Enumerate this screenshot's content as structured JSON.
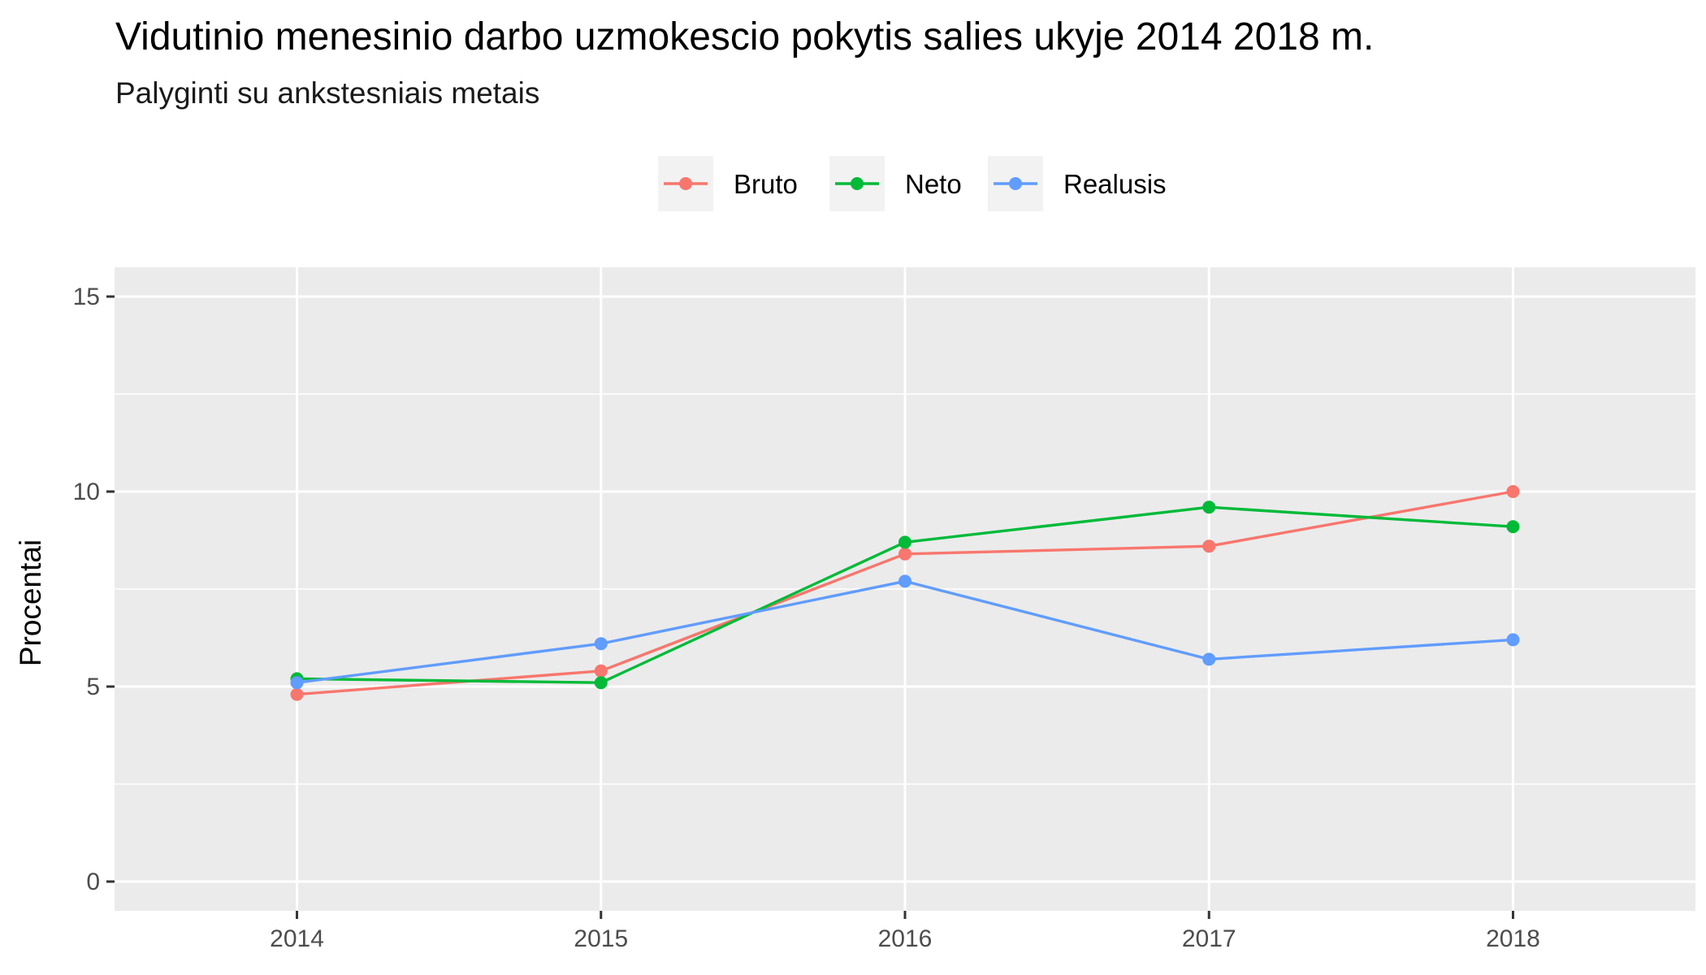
{
  "chart_data": {
    "type": "line",
    "title": "Vidutinio menesinio darbo uzmokescio pokytis salies ukyje 2014 2018 m.",
    "subtitle": "Palyginti su ankstesniais metais",
    "xlabel": "",
    "ylabel": "Procentai",
    "x": [
      2014,
      2015,
      2016,
      2017,
      2018
    ],
    "x_tick_labels": [
      "2014",
      "2015",
      "2016",
      "2017",
      "2018"
    ],
    "xlim": [
      2013.4,
      2018.6
    ],
    "ylim": [
      -0.75,
      15.75
    ],
    "y_ticks": [
      0,
      5,
      10,
      15
    ],
    "y_tick_labels": [
      "0",
      "5",
      "10",
      "15"
    ],
    "grid": true,
    "legend_position": "top",
    "series": [
      {
        "name": "Bruto",
        "color": "#F8766D",
        "values": [
          4.8,
          5.4,
          8.4,
          8.6,
          10.0
        ]
      },
      {
        "name": "Neto",
        "color": "#00BA38",
        "values": [
          5.2,
          5.1,
          8.7,
          9.6,
          9.1
        ]
      },
      {
        "name": "Realusis",
        "color": "#619CFF",
        "values": [
          5.1,
          6.1,
          7.7,
          5.7,
          6.2
        ]
      }
    ],
    "colors": {
      "panel_background": "#EBEBEB",
      "grid": "#FFFFFF",
      "legend_key_background": "#F2F2F2"
    }
  }
}
